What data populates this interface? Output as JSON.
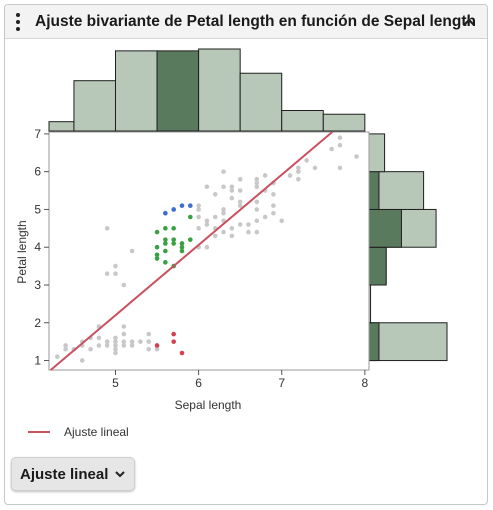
{
  "header": {
    "title": "Ajuste bivariante de Petal length en función de Sepal length"
  },
  "icons": {
    "menu": "more-vert-icon",
    "collapse": "chevron-up-icon",
    "dropdown": "chevron-down-icon"
  },
  "colors": {
    "hist_fill": "#b7c8b9",
    "hist_fill_selected": "#5a7a5e",
    "fit_line": "#c9505e",
    "point_default": "#c8c8c8",
    "point_blue": "#3c6fd1",
    "point_green": "#3aa142",
    "point_red": "#d1424f"
  },
  "legend": {
    "label": "Ajuste lineal"
  },
  "fit_button": {
    "label": "Ajuste lineal"
  },
  "chart_data": {
    "type": "scatter",
    "xlabel": "Sepal length",
    "ylabel": "Petal length",
    "xlim": [
      4.2,
      8.05
    ],
    "ylim": [
      0.75,
      7.05
    ],
    "xticks": [
      5,
      6,
      7,
      8
    ],
    "yticks": [
      1,
      2,
      3,
      4,
      5,
      6,
      7
    ],
    "fit_line": {
      "name": "Ajuste lineal",
      "slope": 1.86,
      "intercept": -7.1
    },
    "series": [
      {
        "group": "default",
        "points": [
          [
            4.3,
            1.1
          ],
          [
            4.4,
            1.3
          ],
          [
            4.4,
            1.4
          ],
          [
            4.5,
            1.3
          ],
          [
            4.6,
            1.4
          ],
          [
            4.6,
            1.5
          ],
          [
            4.6,
            1.0
          ],
          [
            4.7,
            1.3
          ],
          [
            4.7,
            1.6
          ],
          [
            4.8,
            1.4
          ],
          [
            4.8,
            1.6
          ],
          [
            4.8,
            1.9
          ],
          [
            4.9,
            1.4
          ],
          [
            4.9,
            1.5
          ],
          [
            4.9,
            3.3
          ],
          [
            4.9,
            4.5
          ],
          [
            5.0,
            1.2
          ],
          [
            5.0,
            1.3
          ],
          [
            5.0,
            1.4
          ],
          [
            5.0,
            1.5
          ],
          [
            5.0,
            1.6
          ],
          [
            5.0,
            3.3
          ],
          [
            5.0,
            3.5
          ],
          [
            5.1,
            1.4
          ],
          [
            5.1,
            1.5
          ],
          [
            5.1,
            1.7
          ],
          [
            5.1,
            1.9
          ],
          [
            5.1,
            3.0
          ],
          [
            5.2,
            1.4
          ],
          [
            5.2,
            1.5
          ],
          [
            5.2,
            3.9
          ],
          [
            5.3,
            1.5
          ],
          [
            5.4,
            1.3
          ],
          [
            5.4,
            1.5
          ],
          [
            5.4,
            1.7
          ],
          [
            5.5,
            1.3
          ],
          [
            5.5,
            1.4
          ],
          [
            5.6,
            4.9
          ],
          [
            5.7,
            4.2
          ],
          [
            5.7,
            5.0
          ],
          [
            5.8,
            4.1
          ],
          [
            5.8,
            5.1
          ],
          [
            5.9,
            5.1
          ],
          [
            5.9,
            4.2
          ],
          [
            6.0,
            4.0
          ],
          [
            6.0,
            4.5
          ],
          [
            6.0,
            4.8
          ],
          [
            6.0,
            5.0
          ],
          [
            6.0,
            5.1
          ],
          [
            6.1,
            4.0
          ],
          [
            6.1,
            4.6
          ],
          [
            6.1,
            4.7
          ],
          [
            6.1,
            5.6
          ],
          [
            6.2,
            4.3
          ],
          [
            6.2,
            4.5
          ],
          [
            6.2,
            4.8
          ],
          [
            6.2,
            5.4
          ],
          [
            6.3,
            4.4
          ],
          [
            6.3,
            4.7
          ],
          [
            6.3,
            4.9
          ],
          [
            6.3,
            5.0
          ],
          [
            6.3,
            5.6
          ],
          [
            6.3,
            6.0
          ],
          [
            6.4,
            4.3
          ],
          [
            6.4,
            4.5
          ],
          [
            6.4,
            5.3
          ],
          [
            6.4,
            5.5
          ],
          [
            6.4,
            5.6
          ],
          [
            6.5,
            4.6
          ],
          [
            6.5,
            5.1
          ],
          [
            6.5,
            5.2
          ],
          [
            6.5,
            5.5
          ],
          [
            6.5,
            5.8
          ],
          [
            6.6,
            4.4
          ],
          [
            6.6,
            4.6
          ],
          [
            6.7,
            4.4
          ],
          [
            6.7,
            4.7
          ],
          [
            6.7,
            5.0
          ],
          [
            6.7,
            5.2
          ],
          [
            6.7,
            5.6
          ],
          [
            6.7,
            5.7
          ],
          [
            6.7,
            5.8
          ],
          [
            6.8,
            4.8
          ],
          [
            6.8,
            5.5
          ],
          [
            6.8,
            5.9
          ],
          [
            6.9,
            4.9
          ],
          [
            6.9,
            5.1
          ],
          [
            6.9,
            5.4
          ],
          [
            6.9,
            5.7
          ],
          [
            7.0,
            4.7
          ],
          [
            7.1,
            5.9
          ],
          [
            7.2,
            5.8
          ],
          [
            7.2,
            6.0
          ],
          [
            7.2,
            6.1
          ],
          [
            7.3,
            6.3
          ],
          [
            7.4,
            6.1
          ],
          [
            7.6,
            6.6
          ],
          [
            7.7,
            6.1
          ],
          [
            7.7,
            6.7
          ],
          [
            7.7,
            6.9
          ],
          [
            7.9,
            6.4
          ]
        ]
      },
      {
        "group": "blue",
        "points": [
          [
            5.6,
            4.9
          ],
          [
            5.7,
            5.0
          ],
          [
            5.8,
            5.1
          ],
          [
            5.9,
            5.1
          ]
        ]
      },
      {
        "group": "green",
        "points": [
          [
            5.5,
            3.8
          ],
          [
            5.5,
            4.0
          ],
          [
            5.5,
            4.4
          ],
          [
            5.5,
            3.7
          ],
          [
            5.6,
            3.6
          ],
          [
            5.6,
            3.9
          ],
          [
            5.6,
            4.1
          ],
          [
            5.6,
            4.2
          ],
          [
            5.6,
            4.5
          ],
          [
            5.7,
            3.5
          ],
          [
            5.7,
            4.1
          ],
          [
            5.7,
            4.2
          ],
          [
            5.7,
            4.5
          ],
          [
            5.8,
            3.9
          ],
          [
            5.8,
            4.0
          ],
          [
            5.8,
            4.1
          ],
          [
            5.9,
            4.2
          ],
          [
            5.9,
            4.8
          ]
        ]
      },
      {
        "group": "red",
        "points": [
          [
            5.5,
            1.4
          ],
          [
            5.7,
            1.5
          ],
          [
            5.7,
            1.7
          ],
          [
            5.8,
            1.2
          ]
        ]
      }
    ],
    "x_histogram": {
      "bins": [
        [
          4.0,
          4.5
        ],
        [
          4.5,
          5.0
        ],
        [
          5.0,
          5.5
        ],
        [
          5.5,
          6.0
        ],
        [
          6.0,
          6.5
        ],
        [
          6.5,
          7.0
        ],
        [
          7.0,
          7.5
        ],
        [
          7.5,
          8.0
        ]
      ],
      "counts": [
        5,
        27,
        43,
        43,
        44,
        31,
        11,
        9
      ],
      "selected_index": 3
    },
    "y_histogram": {
      "bins": [
        [
          1,
          2
        ],
        [
          2,
          3
        ],
        [
          3,
          4
        ],
        [
          4,
          5
        ],
        [
          5,
          6
        ],
        [
          6,
          7
        ]
      ],
      "counts": [
        50,
        1,
        11,
        43,
        35,
        10
      ],
      "selected_counts": [
        4,
        0,
        9,
        13,
        4,
        0
      ]
    }
  }
}
